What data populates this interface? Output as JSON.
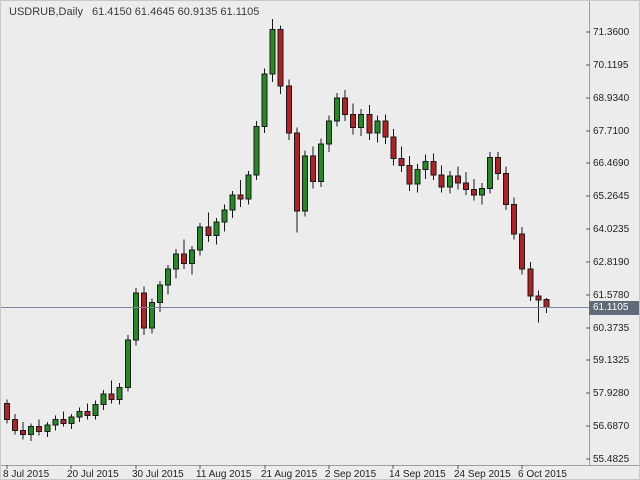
{
  "chart_data": {
    "type": "candlestick",
    "symbol_period": "USDRUB,Daily",
    "quote_ohlc": "61.4150 61.4645 60.9135 61.1105",
    "current_price": "61.1105",
    "grid": "off",
    "legend": "none",
    "y_axis_labels": [
      "71.3600",
      "70.1195",
      "68.9340",
      "67.7100",
      "66.4690",
      "65.2645",
      "64.0235",
      "62.8190",
      "61.5780",
      "60.3735",
      "59.1325",
      "57.9280",
      "56.6870",
      "55.4825"
    ],
    "x_axis_labels": [
      "8 Jul 2015",
      "20 Jul 2015",
      "30 Jul 2015",
      "11 Aug 2015",
      "21 Aug 2015",
      "2 Sep 2015",
      "14 Sep 2015",
      "24 Sep 2015",
      "6 Oct 2015"
    ],
    "ylim": [
      55.4825,
      71.36
    ],
    "candles_format": [
      "date",
      "open",
      "high",
      "low",
      "close"
    ],
    "candles": [
      [
        "8 Jul 2015",
        57.55,
        57.7,
        56.8,
        56.95
      ],
      [
        "9 Jul 2015",
        56.95,
        57.15,
        56.4,
        56.55
      ],
      [
        "10 Jul 2015",
        56.55,
        56.85,
        56.2,
        56.4
      ],
      [
        "13 Jul 2015",
        56.4,
        56.8,
        56.15,
        56.7
      ],
      [
        "14 Jul 2015",
        56.7,
        56.95,
        56.35,
        56.5
      ],
      [
        "15 Jul 2015",
        56.5,
        56.85,
        56.3,
        56.75
      ],
      [
        "16 Jul 2015",
        56.75,
        57.1,
        56.55,
        56.95
      ],
      [
        "17 Jul 2015",
        56.95,
        57.25,
        56.7,
        56.8
      ],
      [
        "20 Jul 2015",
        56.8,
        57.15,
        56.6,
        57.05
      ],
      [
        "21 Jul 2015",
        57.05,
        57.4,
        56.85,
        57.25
      ],
      [
        "22 Jul 2015",
        57.25,
        57.55,
        56.95,
        57.1
      ],
      [
        "23 Jul 2015",
        57.1,
        57.65,
        56.95,
        57.5
      ],
      [
        "24 Jul 2015",
        57.5,
        58.05,
        57.3,
        57.9
      ],
      [
        "27 Jul 2015",
        57.9,
        58.4,
        57.55,
        57.7
      ],
      [
        "28 Jul 2015",
        57.7,
        58.3,
        57.5,
        58.15
      ],
      [
        "29 Jul 2015",
        58.15,
        60.1,
        58.0,
        59.9
      ],
      [
        "30 Jul 2015",
        59.9,
        61.85,
        59.7,
        61.65
      ],
      [
        "31 Jul 2015",
        61.65,
        61.9,
        60.1,
        60.35
      ],
      [
        "3 Aug 2015",
        60.35,
        61.45,
        60.15,
        61.3
      ],
      [
        "4 Aug 2015",
        61.3,
        62.1,
        60.95,
        61.95
      ],
      [
        "5 Aug 2015",
        61.95,
        62.7,
        61.6,
        62.55
      ],
      [
        "6 Aug 2015",
        62.55,
        63.3,
        62.2,
        63.1
      ],
      [
        "7 Aug 2015",
        63.1,
        63.65,
        62.55,
        62.75
      ],
      [
        "10 Aug 2015",
        62.75,
        63.4,
        62.35,
        63.25
      ],
      [
        "11 Aug 2015",
        63.25,
        64.25,
        63.05,
        64.1
      ],
      [
        "12 Aug 2015",
        64.1,
        64.65,
        63.55,
        63.8
      ],
      [
        "13 Aug 2015",
        63.8,
        64.45,
        63.45,
        64.3
      ],
      [
        "14 Aug 2015",
        64.3,
        64.95,
        63.95,
        64.75
      ],
      [
        "17 Aug 2015",
        64.75,
        65.45,
        64.45,
        65.3
      ],
      [
        "18 Aug 2015",
        65.3,
        65.85,
        64.85,
        65.15
      ],
      [
        "19 Aug 2015",
        65.15,
        66.2,
        64.95,
        66.05
      ],
      [
        "20 Aug 2015",
        66.05,
        68.05,
        65.85,
        67.85
      ],
      [
        "21 Aug 2015",
        67.85,
        70.0,
        67.6,
        69.8
      ],
      [
        "24 Aug 2015",
        69.8,
        71.85,
        69.5,
        71.45
      ],
      [
        "25 Aug 2015",
        71.45,
        71.6,
        69.05,
        69.35
      ],
      [
        "26 Aug 2015",
        69.35,
        69.6,
        67.35,
        67.6
      ],
      [
        "27 Aug 2015",
        67.6,
        67.8,
        63.9,
        64.7
      ],
      [
        "28 Aug 2015",
        64.7,
        66.95,
        64.5,
        66.75
      ],
      [
        "31 Aug 2015",
        66.75,
        67.1,
        65.55,
        65.8
      ],
      [
        "1 Sep 2015",
        65.8,
        67.4,
        65.6,
        67.2
      ],
      [
        "2 Sep 2015",
        67.2,
        68.25,
        66.9,
        68.05
      ],
      [
        "3 Sep 2015",
        68.05,
        69.1,
        67.85,
        68.9
      ],
      [
        "4 Sep 2015",
        68.9,
        69.2,
        68.05,
        68.3
      ],
      [
        "7 Sep 2015",
        68.3,
        68.7,
        67.55,
        67.8
      ],
      [
        "8 Sep 2015",
        67.8,
        68.5,
        67.5,
        68.3
      ],
      [
        "9 Sep 2015",
        68.3,
        68.65,
        67.35,
        67.6
      ],
      [
        "10 Sep 2015",
        67.6,
        68.25,
        67.25,
        68.05
      ],
      [
        "11 Sep 2015",
        68.05,
        68.3,
        67.2,
        67.45
      ],
      [
        "14 Sep 2015",
        67.45,
        67.75,
        66.4,
        66.65
      ],
      [
        "15 Sep 2015",
        66.65,
        67.1,
        66.15,
        66.4
      ],
      [
        "16 Sep 2015",
        66.4,
        66.75,
        65.45,
        65.7
      ],
      [
        "17 Sep 2015",
        65.7,
        66.45,
        65.4,
        66.25
      ],
      [
        "18 Sep 2015",
        66.25,
        66.8,
        65.9,
        66.55
      ],
      [
        "21 Sep 2015",
        66.55,
        66.85,
        65.85,
        66.05
      ],
      [
        "22 Sep 2015",
        66.05,
        66.4,
        65.4,
        65.6
      ],
      [
        "23 Sep 2015",
        65.6,
        66.2,
        65.35,
        66.0
      ],
      [
        "24 Sep 2015",
        66.0,
        66.35,
        65.5,
        65.75
      ],
      [
        "25 Sep 2015",
        65.75,
        66.15,
        65.3,
        65.5
      ],
      [
        "28 Sep 2015",
        65.5,
        65.9,
        65.1,
        65.3
      ],
      [
        "29 Sep 2015",
        65.3,
        65.75,
        64.95,
        65.55
      ],
      [
        "30 Sep 2015",
        65.55,
        66.9,
        65.35,
        66.7
      ],
      [
        "1 Oct 2015",
        66.7,
        66.9,
        65.85,
        66.1
      ],
      [
        "2 Oct 2015",
        66.1,
        66.35,
        64.75,
        64.95
      ],
      [
        "5 Oct 2015",
        64.95,
        65.2,
        63.65,
        63.85
      ],
      [
        "6 Oct 2015",
        63.85,
        64.1,
        62.35,
        62.55
      ],
      [
        "7 Oct 2015",
        62.55,
        62.8,
        61.35,
        61.55
      ],
      [
        "8 Oct 2015",
        61.55,
        61.75,
        60.55,
        61.4
      ],
      [
        "9 Oct 2015",
        61.415,
        61.4645,
        60.9135,
        61.1105
      ]
    ],
    "colors": {
      "background": "#ececec",
      "up": "#228b22",
      "down": "#b22222",
      "outline": "#1a1a1a",
      "axis_text": "#1f1f1f",
      "title_text": "#3a3a3a",
      "separator": "#9e9e9e",
      "tick": "#5a5a5a",
      "price_line": "#778899",
      "price_label_bg": "#5f6b76",
      "price_label_text": "#ffffff"
    }
  }
}
